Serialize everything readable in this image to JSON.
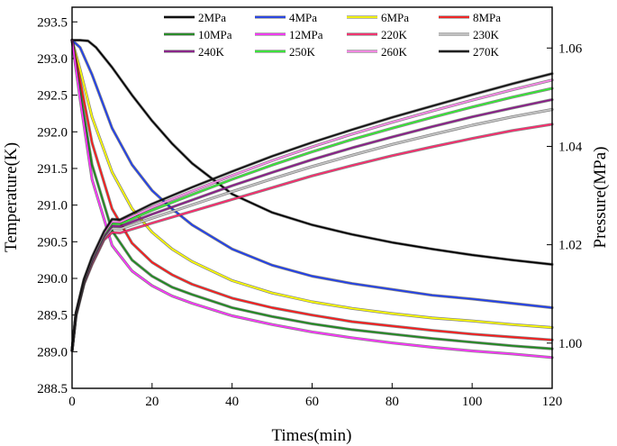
{
  "chart_data": {
    "type": "line",
    "xlabel": "Times(min)",
    "ylabel_left": "Temperature(K)",
    "ylabel_right": "Pressure(MPa)",
    "xlim": [
      0,
      120
    ],
    "ylim_left": [
      288.5,
      293.7
    ],
    "ylim_right": [
      0.9908,
      1.0683
    ],
    "x_ticks": [
      0,
      20,
      40,
      60,
      80,
      100,
      120
    ],
    "y_left_ticks": [
      "288.5",
      "289.0",
      "289.5",
      "290.0",
      "290.5",
      "291.0",
      "291.5",
      "292.0",
      "292.5",
      "293.0",
      "293.5"
    ],
    "y_right_ticks": [
      "1.00",
      "1.02",
      "1.04",
      "1.06"
    ],
    "legend_position": "top",
    "temperature_series": [
      {
        "name": "2MPa",
        "color": "#000000",
        "x": [
          0,
          2,
          4,
          6,
          10,
          15,
          20,
          25,
          30,
          40,
          50,
          60,
          70,
          80,
          90,
          100,
          110,
          120
        ],
        "values": [
          293.25,
          293.25,
          293.24,
          293.15,
          292.88,
          292.5,
          292.15,
          291.84,
          291.57,
          291.15,
          290.9,
          290.73,
          290.6,
          290.49,
          290.4,
          290.32,
          290.25,
          290.19
        ]
      },
      {
        "name": "4MPa",
        "color": "#1f3ff0",
        "x": [
          0,
          2,
          5,
          10,
          15,
          20,
          25,
          30,
          40,
          50,
          60,
          70,
          80,
          90,
          100,
          110,
          120
        ],
        "values": [
          293.25,
          293.15,
          292.78,
          292.05,
          291.55,
          291.2,
          290.95,
          290.73,
          290.4,
          290.18,
          290.03,
          289.93,
          289.85,
          289.77,
          289.72,
          289.66,
          289.6
        ]
      },
      {
        "name": "6MPa",
        "color": "#ffff00",
        "x": [
          0,
          2,
          5,
          10,
          15,
          20,
          25,
          30,
          40,
          50,
          60,
          70,
          80,
          90,
          100,
          110,
          120
        ],
        "values": [
          293.25,
          292.85,
          292.2,
          291.45,
          290.95,
          290.63,
          290.4,
          290.23,
          289.97,
          289.8,
          289.68,
          289.59,
          289.52,
          289.46,
          289.42,
          289.37,
          289.33
        ]
      },
      {
        "name": "8MPa",
        "color": "#ff1a1a",
        "x": [
          0,
          2,
          5,
          10,
          15,
          20,
          25,
          30,
          40,
          50,
          60,
          70,
          80,
          90,
          100,
          110,
          120
        ],
        "values": [
          293.25,
          292.7,
          291.85,
          290.95,
          290.48,
          290.22,
          290.05,
          289.92,
          289.73,
          289.6,
          289.5,
          289.41,
          289.35,
          289.29,
          289.24,
          289.2,
          289.16
        ]
      },
      {
        "name": "10MPa",
        "color": "#1e8c1e",
        "x": [
          0,
          2,
          5,
          10,
          15,
          20,
          25,
          30,
          40,
          50,
          60,
          70,
          80,
          90,
          100,
          110,
          120
        ],
        "values": [
          293.25,
          292.55,
          291.55,
          290.65,
          290.25,
          290.03,
          289.88,
          289.78,
          289.6,
          289.48,
          289.38,
          289.3,
          289.24,
          289.18,
          289.13,
          289.08,
          289.04
        ]
      },
      {
        "name": "12MPa",
        "color": "#ff33ff",
        "x": [
          0,
          2,
          5,
          10,
          15,
          20,
          25,
          30,
          40,
          50,
          60,
          70,
          80,
          90,
          100,
          110,
          120
        ],
        "values": [
          293.25,
          292.45,
          291.35,
          290.45,
          290.1,
          289.9,
          289.76,
          289.66,
          289.49,
          289.37,
          289.27,
          289.19,
          289.12,
          289.06,
          289.01,
          288.97,
          288.92
        ]
      }
    ],
    "pressure_series": [
      {
        "name": "220K",
        "color": "#ff2a6d",
        "x": [
          0,
          1,
          3,
          5,
          8,
          10,
          12,
          20,
          30,
          40,
          50,
          60,
          70,
          80,
          90,
          100,
          110,
          120
        ],
        "values": [
          0.9985,
          1.0055,
          1.012,
          1.016,
          1.021,
          1.0225,
          1.0224,
          1.0244,
          1.0268,
          1.0292,
          1.0316,
          1.034,
          1.0361,
          1.0381,
          1.0399,
          1.0416,
          1.0432,
          1.0445
        ]
      },
      {
        "name": "230K",
        "color": "#c8c8c8",
        "x": [
          0,
          1,
          3,
          5,
          8,
          10,
          12,
          20,
          30,
          40,
          50,
          60,
          70,
          80,
          90,
          100,
          110,
          120
        ],
        "values": [
          0.9985,
          1.0057,
          1.0122,
          1.0163,
          1.0213,
          1.0233,
          1.0232,
          1.0254,
          1.0281,
          1.0308,
          1.0334,
          1.0359,
          1.0382,
          1.0404,
          1.0424,
          1.0443,
          1.046,
          1.0475
        ]
      },
      {
        "name": "240K",
        "color": "#8b1a8b",
        "x": [
          0,
          1,
          3,
          5,
          8,
          10,
          12,
          20,
          30,
          40,
          50,
          60,
          70,
          80,
          90,
          100,
          110,
          120
        ],
        "values": [
          0.9985,
          1.0058,
          1.0124,
          1.0166,
          1.0216,
          1.0238,
          1.0237,
          1.0262,
          1.0291,
          1.032,
          1.0347,
          1.0373,
          1.0397,
          1.0419,
          1.044,
          1.046,
          1.0478,
          1.0495
        ]
      },
      {
        "name": "250K",
        "color": "#33ee33",
        "x": [
          0,
          1,
          3,
          5,
          8,
          10,
          12,
          20,
          30,
          40,
          50,
          60,
          70,
          80,
          90,
          100,
          110,
          120
        ],
        "values": [
          0.9985,
          1.006,
          1.0127,
          1.017,
          1.022,
          1.0243,
          1.0242,
          1.027,
          1.0302,
          1.0333,
          1.0362,
          1.0389,
          1.0414,
          1.0437,
          1.0459,
          1.048,
          1.05,
          1.0518
        ]
      },
      {
        "name": "260K",
        "color": "#ff88ee",
        "x": [
          0,
          1,
          3,
          5,
          8,
          10,
          12,
          20,
          30,
          40,
          50,
          60,
          70,
          80,
          90,
          100,
          110,
          120
        ],
        "values": [
          0.9985,
          1.0061,
          1.0129,
          1.0172,
          1.0223,
          1.0247,
          1.0246,
          1.0276,
          1.0309,
          1.0341,
          1.0371,
          1.0399,
          1.0425,
          1.0449,
          1.0472,
          1.0494,
          1.0515,
          1.0535
        ]
      },
      {
        "name": "270K",
        "color": "#111111",
        "x": [
          0,
          1,
          3,
          5,
          8,
          10,
          12,
          20,
          30,
          40,
          50,
          60,
          70,
          80,
          90,
          100,
          110,
          120
        ],
        "values": [
          0.9985,
          1.0062,
          1.013,
          1.0175,
          1.0227,
          1.0252,
          1.0251,
          1.0283,
          1.0317,
          1.0349,
          1.038,
          1.0408,
          1.0434,
          1.0459,
          1.0482,
          1.0505,
          1.0527,
          1.0548
        ]
      }
    ]
  }
}
